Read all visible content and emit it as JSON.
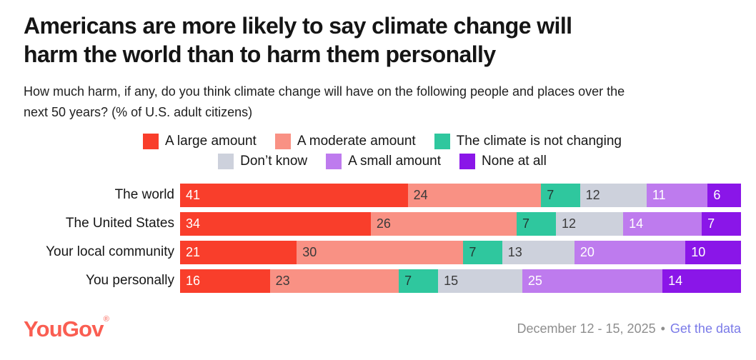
{
  "title": "Americans are more likely to say climate change will\nharm the world than to harm them personally",
  "subtitle": "How much harm, if any, do you think climate change will have on the following people and places over the\nnext 50 years? (% of U.S. adult citizens)",
  "legend": {
    "rows": [
      [
        "A large amount",
        "A moderate amount",
        "The climate is not changing"
      ],
      [
        "Don’t know",
        "A small amount",
        "None at all"
      ]
    ]
  },
  "chart_data": {
    "type": "bar",
    "stacked": true,
    "orientation": "horizontal",
    "value_unit": "percent",
    "categories": [
      "The world",
      "The United States",
      "Your local community",
      "You personally"
    ],
    "series": [
      {
        "name": "A large amount",
        "color": "#f93e2b",
        "text_color": "#ffffff",
        "values": [
          41,
          34,
          21,
          16
        ]
      },
      {
        "name": "A moderate amount",
        "color": "#f99184",
        "text_color": "#3a3a3a",
        "values": [
          24,
          26,
          30,
          23
        ]
      },
      {
        "name": "The climate is not changing",
        "color": "#2fc79e",
        "text_color": "#223a34",
        "values": [
          7,
          7,
          7,
          7
        ]
      },
      {
        "name": "Don’t know",
        "color": "#cdd1dc",
        "text_color": "#3a3a3a",
        "values": [
          12,
          12,
          13,
          15
        ]
      },
      {
        "name": "A small amount",
        "color": "#be7bee",
        "text_color": "#ffffff",
        "values": [
          11,
          14,
          20,
          25
        ]
      },
      {
        "name": "None at all",
        "color": "#8a16e8",
        "text_color": "#ffffff",
        "values": [
          6,
          7,
          10,
          14
        ]
      }
    ]
  },
  "footer": {
    "logo": "YouGov",
    "logo_mark": "®",
    "brand_color": "#fa5e52",
    "date_range": "December 12 - 15, 2025",
    "separator": "•",
    "link": "Get the data",
    "link_color": "#7a7ae8"
  }
}
